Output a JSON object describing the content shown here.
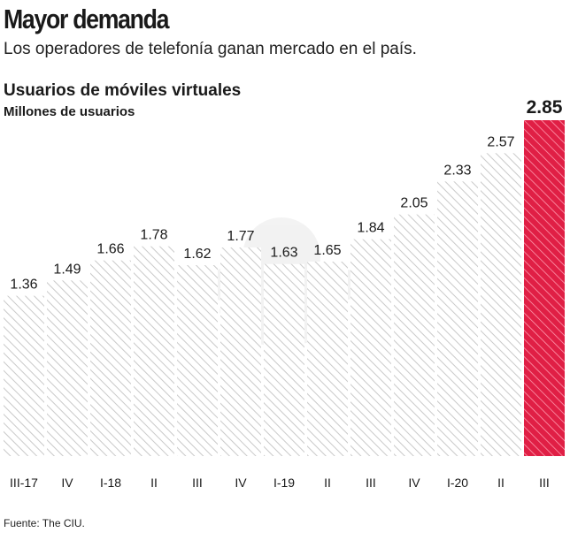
{
  "header": {
    "title": "Mayor demanda",
    "subtitle": "Los operadores de telefonía ganan mercado en el país."
  },
  "footer": {
    "source": "Fuente: The CIU."
  },
  "colors": {
    "hatch": "#c9c9c9",
    "highlight": "#e01f45",
    "highlight_line": "#ff9aae",
    "text": "#1a1a1a"
  },
  "chart_data": {
    "type": "bar",
    "title": "Usuarios de móviles virtuales",
    "ylabel": "Millones de usuarios",
    "xlabel": "",
    "categories": [
      "III-17",
      "IV",
      "I-18",
      "II",
      "III",
      "IV",
      "I-19",
      "II",
      "III",
      "IV",
      "I-20",
      "II",
      "III"
    ],
    "values": [
      1.36,
      1.49,
      1.66,
      1.78,
      1.62,
      1.77,
      1.63,
      1.65,
      1.84,
      2.05,
      2.33,
      2.57,
      2.85
    ],
    "value_labels": [
      "1.36",
      "1.49",
      "1.66",
      "1.78",
      "1.62",
      "1.77",
      "1.63",
      "1.65",
      "1.84",
      "2.05",
      "2.33",
      "2.57",
      "2.85"
    ],
    "highlight_index": 12,
    "ylim": [
      0,
      2.85
    ],
    "grid": false,
    "legend": "none"
  }
}
